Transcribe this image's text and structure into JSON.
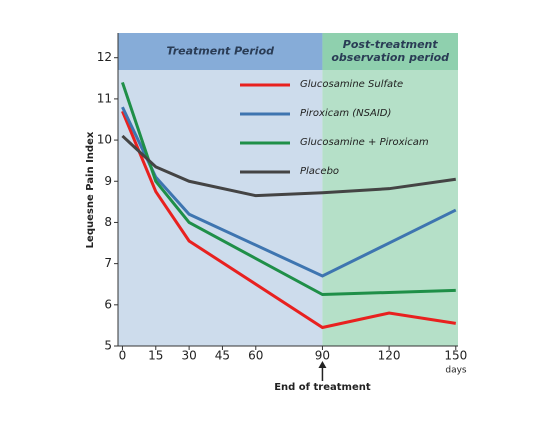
{
  "chart_data": {
    "type": "line",
    "y_label": "Lequesne Pain Index",
    "x_unit": "days",
    "annotation": "End of treatment",
    "annotation_x": 90,
    "periods": [
      {
        "label": [
          "Treatment Period"
        ],
        "range": [
          -2,
          90
        ],
        "color": "#cddcec",
        "header_color": "#86acd8"
      },
      {
        "label": [
          "Post-treatment",
          "observation period"
        ],
        "range": [
          90,
          151
        ],
        "color": "#b5e0c8",
        "header_color": "#8fd0ae"
      }
    ],
    "xlim": [
      -2,
      151
    ],
    "ylim": [
      5,
      12.6
    ],
    "xticks": [
      0,
      15,
      30,
      45,
      60,
      90,
      120,
      150
    ],
    "yticks": [
      5,
      6,
      7,
      8,
      9,
      10,
      11,
      12
    ],
    "series": [
      {
        "name": "Glucosamine Sulfate",
        "color": "#e8211f",
        "x": [
          0,
          15,
          30,
          90,
          120,
          150
        ],
        "values": [
          10.7,
          8.75,
          7.55,
          5.45,
          5.8,
          5.55
        ]
      },
      {
        "name": "Piroxicam (NSAID)",
        "color": "#3e75b0",
        "x": [
          0,
          15,
          30,
          90,
          120,
          150
        ],
        "values": [
          10.8,
          9.1,
          8.2,
          6.7,
          7.5,
          8.3
        ]
      },
      {
        "name": "Glucosamine + Piroxicam",
        "color": "#1f8f48",
        "x": [
          0,
          15,
          30,
          90,
          150
        ],
        "values": [
          11.4,
          9.0,
          8.0,
          6.25,
          6.35
        ]
      },
      {
        "name": "Placebo",
        "color": "#444444",
        "x": [
          0,
          15,
          30,
          60,
          90,
          120,
          150
        ],
        "values": [
          10.1,
          9.35,
          9.0,
          8.65,
          8.72,
          8.82,
          9.05
        ]
      }
    ]
  }
}
